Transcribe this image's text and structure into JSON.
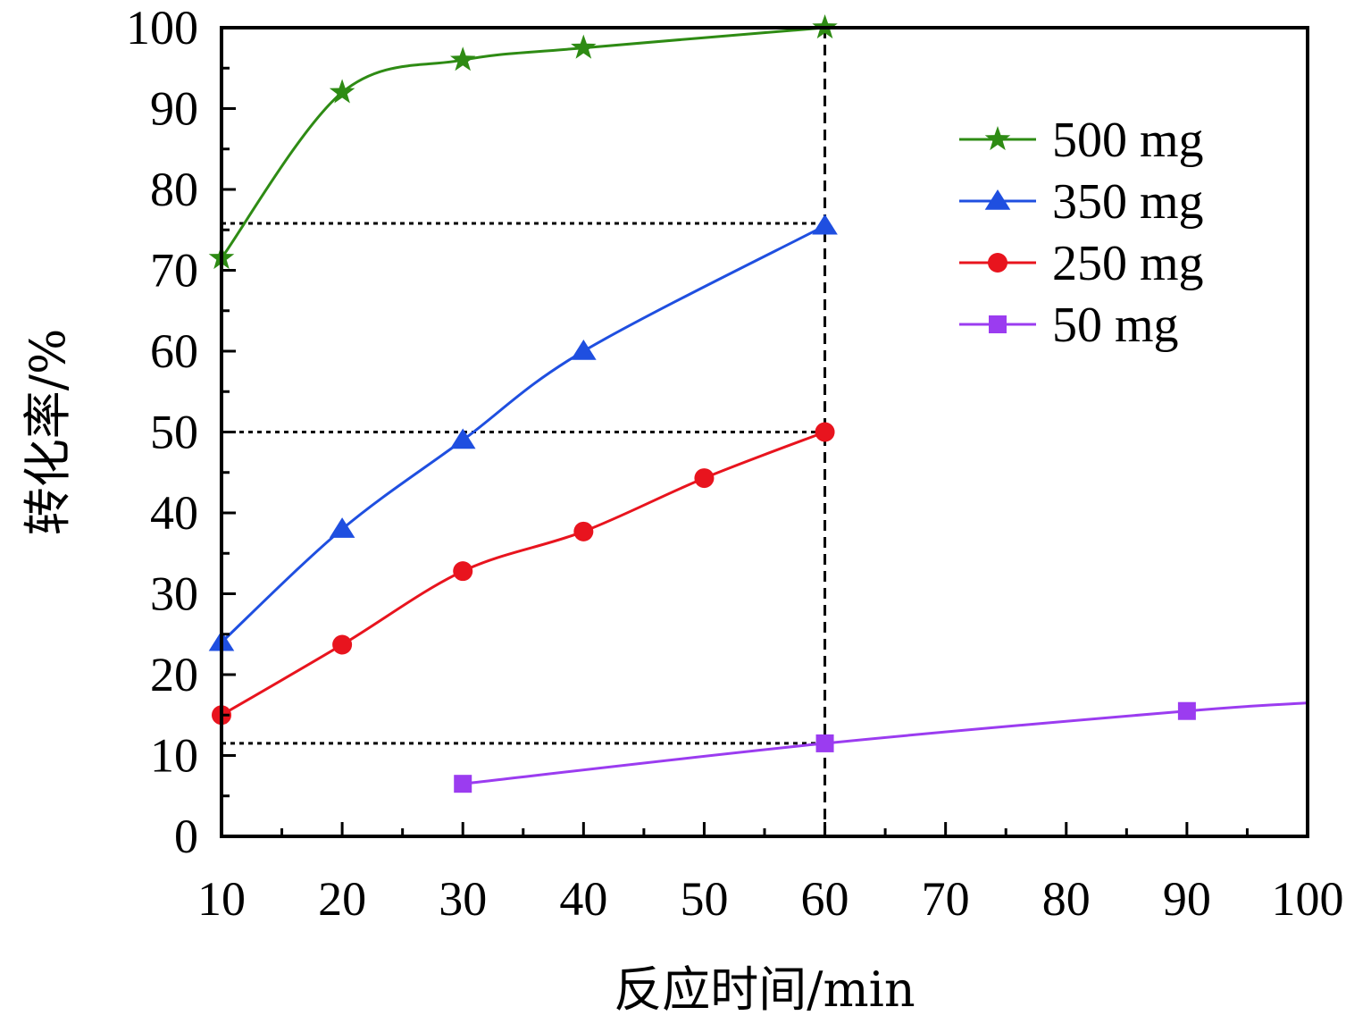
{
  "chart_data": {
    "type": "line",
    "title": "",
    "xlabel": "反应时间/min",
    "ylabel": "转化率/%",
    "xlim": [
      10,
      100
    ],
    "ylim": [
      0,
      100
    ],
    "xticks": [
      10,
      20,
      30,
      40,
      50,
      60,
      70,
      80,
      90,
      100
    ],
    "yticks": [
      0,
      10,
      20,
      30,
      40,
      50,
      60,
      70,
      80,
      90,
      100
    ],
    "grid": false,
    "legend_position": "top-right",
    "series": [
      {
        "name": "500 mg",
        "color": "#2e8b14",
        "marker": "star",
        "x": [
          10,
          20,
          30,
          40,
          60
        ],
        "values": [
          71.5,
          92,
          96,
          97.5,
          100
        ]
      },
      {
        "name": "350 mg",
        "color": "#1f4fe0",
        "marker": "triangle",
        "x": [
          10,
          20,
          30,
          40,
          60
        ],
        "values": [
          24,
          38,
          49,
          60,
          75.5
        ]
      },
      {
        "name": "250 mg",
        "color": "#e8141e",
        "marker": "circle",
        "x": [
          10,
          20,
          30,
          40,
          50,
          60
        ],
        "values": [
          15,
          23.7,
          32.8,
          37.7,
          44.3,
          50
        ]
      },
      {
        "name": "50 mg",
        "color": "#9b3cf0",
        "marker": "square",
        "x": [
          30,
          60,
          90
        ],
        "values": [
          6.5,
          11.5,
          15.5
        ],
        "extends_to_x": 100,
        "extends_to_value": 16.5
      }
    ],
    "reference_lines": [
      {
        "orientation": "vertical",
        "x": 60,
        "from_y": 0,
        "to_y": 100,
        "style": "dashed"
      },
      {
        "orientation": "horizontal",
        "y": 75.8,
        "from_x": 10,
        "to_x": 60,
        "style": "dotted"
      },
      {
        "orientation": "horizontal",
        "y": 50,
        "from_x": 10,
        "to_x": 60,
        "style": "dotted"
      },
      {
        "orientation": "horizontal",
        "y": 11.5,
        "from_x": 10,
        "to_x": 60,
        "style": "dotted"
      }
    ]
  }
}
